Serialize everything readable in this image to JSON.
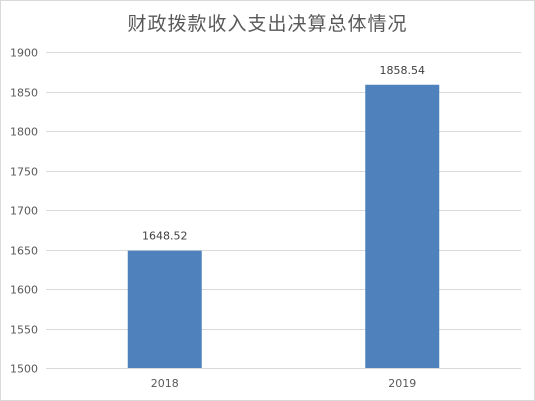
{
  "chart_data": {
    "type": "bar",
    "title": "财政拨款收入支出决算总体情况",
    "categories": [
      "2018",
      "2019"
    ],
    "series": [
      {
        "values": [
          1648.52,
          1858.54
        ]
      }
    ],
    "data_labels": [
      "1648.52",
      "1858.54"
    ],
    "xlabel": "",
    "ylabel": "",
    "ylim": [
      1500,
      1900
    ],
    "yticks": [
      1500,
      1550,
      1600,
      1650,
      1700,
      1750,
      1800,
      1850,
      1900
    ],
    "grid": true,
    "legend": "none",
    "bar_color": "#4f81bd",
    "grid_color": "#d9d9d9"
  }
}
